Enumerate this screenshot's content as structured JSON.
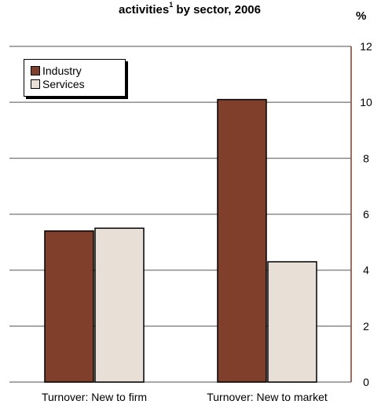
{
  "chart_data": {
    "type": "bar",
    "title_main": "activities",
    "title_sup": "1",
    "title_rest": " by sector, 2006",
    "y_unit_label": "%",
    "categories": [
      "Turnover: New to firm",
      "Turnover: New to market"
    ],
    "series": [
      {
        "name": "Industry",
        "values": [
          5.4,
          10.1
        ],
        "color": "#7f3f2b"
      },
      {
        "name": "Services",
        "values": [
          5.5,
          4.3
        ],
        "color": "#e8e0d6"
      }
    ],
    "ylim": [
      0,
      12
    ],
    "yticks": [
      0,
      2,
      4,
      6,
      8,
      10,
      12
    ],
    "grid": true,
    "legend_position": "top-left"
  }
}
